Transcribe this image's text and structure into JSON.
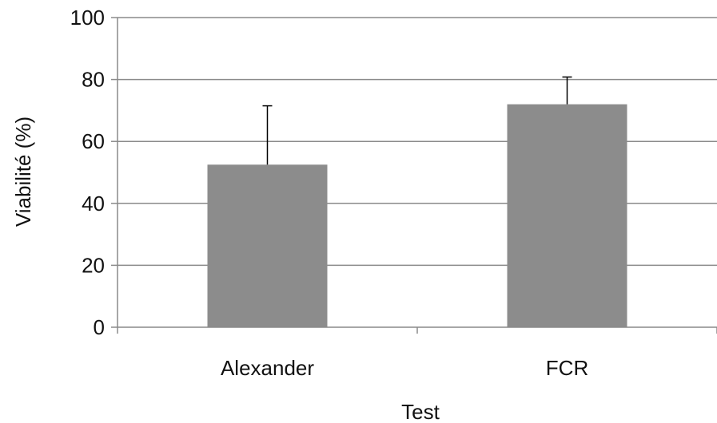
{
  "chart_data": {
    "type": "bar",
    "categories": [
      "Alexander",
      "FCR"
    ],
    "series": [
      {
        "values": [
          52.5,
          72
        ],
        "error": [
          19,
          8.8
        ]
      }
    ],
    "xlabel": "Test",
    "ylabel": "Viabilité (%)",
    "ylim": [
      0,
      100
    ],
    "yticks": [
      0,
      20,
      40,
      60,
      80,
      100
    ],
    "ytick_labels": [
      "0",
      "20",
      "40",
      "60",
      "80",
      "100"
    ],
    "grid": true,
    "legend": "none",
    "colors": {
      "bar": "#8c8c8c",
      "grid": "#8a8a8a",
      "axis": "#8a8a8a",
      "error_bar": "#000000"
    }
  }
}
